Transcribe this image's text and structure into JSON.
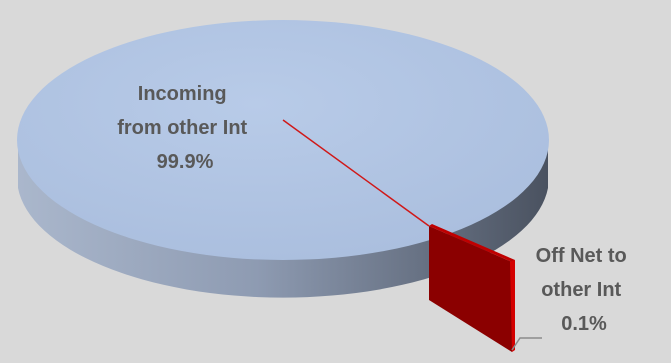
{
  "chart_data": {
    "type": "pie",
    "style": "3d-exploded",
    "slices": [
      {
        "label_lines": [
          "Incoming",
          "from other Int"
        ],
        "percent_label": "99.9%",
        "value": 99.9,
        "color": "#b0c4e4"
      },
      {
        "label_lines": [
          "Off Net to",
          "other Int"
        ],
        "percent_label": "0.1%",
        "value": 0.1,
        "color": "#d40000"
      }
    ],
    "label_color": "#595959",
    "background": "#d9d9d9"
  }
}
